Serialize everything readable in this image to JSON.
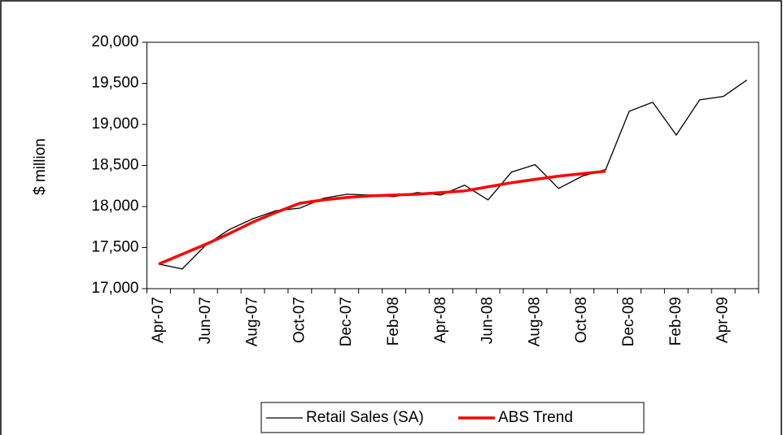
{
  "chart_data": {
    "type": "line",
    "y_label": "$ million",
    "categories": [
      "Apr-07",
      null,
      "Jun-07",
      null,
      "Aug-07",
      null,
      "Oct-07",
      null,
      "Dec-07",
      null,
      "Feb-08",
      null,
      "Apr-08",
      null,
      "Jun-08",
      null,
      "Aug-08",
      null,
      "Oct-08",
      null,
      "Dec-08",
      null,
      "Feb-09",
      null,
      "Apr-09",
      null
    ],
    "series": [
      {
        "name": "Retail Sales (SA)",
        "color": "#000000",
        "width": 1.3,
        "values": [
          17300,
          17240,
          17530,
          17720,
          17850,
          17950,
          17980,
          18100,
          18150,
          18140,
          18120,
          18170,
          18140,
          18260,
          18080,
          18420,
          18510,
          18220,
          18370,
          18450,
          19160,
          19270,
          18870,
          19300,
          19340,
          19540
        ]
      },
      {
        "name": "ABS Trend",
        "color": "#ff0000",
        "width": 3.5,
        "values": [
          17300,
          17420,
          17540,
          17670,
          17810,
          17930,
          18040,
          18080,
          18110,
          18130,
          18140,
          18150,
          18170,
          18190,
          18240,
          18290,
          18330,
          18370,
          18400,
          18430,
          null,
          null,
          null,
          null,
          null,
          null
        ]
      }
    ],
    "ylim": [
      17000,
      20000
    ],
    "yticks": [
      {
        "value": 17000,
        "label": "17,000"
      },
      {
        "value": 17500,
        "label": "17,500"
      },
      {
        "value": 18000,
        "label": "18,000"
      },
      {
        "value": 18500,
        "label": "18,500"
      },
      {
        "value": 19000,
        "label": "19,000"
      },
      {
        "value": 19500,
        "label": "19,500"
      },
      {
        "value": 20000,
        "label": "20,000"
      }
    ],
    "legend": "bottom"
  }
}
